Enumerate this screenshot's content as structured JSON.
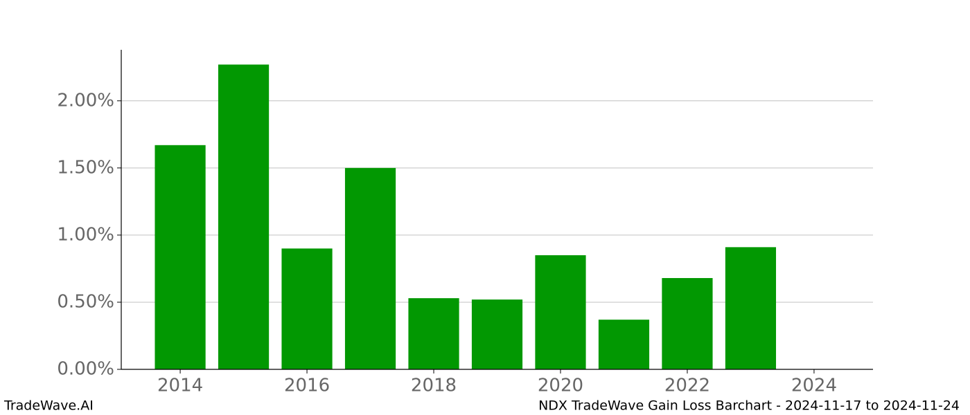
{
  "chart_data": {
    "type": "bar",
    "x": [
      2014,
      2015,
      2016,
      2017,
      2018,
      2019,
      2020,
      2021,
      2022,
      2023
    ],
    "values": [
      1.67,
      2.27,
      0.9,
      1.5,
      0.53,
      0.52,
      0.85,
      0.37,
      0.68,
      0.91
    ],
    "color": "#029802",
    "xlim": [
      2013.07,
      2024.93
    ],
    "xticks": [
      2014,
      2016,
      2018,
      2020,
      2022,
      2024
    ],
    "ylim": [
      0,
      2.38
    ],
    "yticks": [
      {
        "value": 0,
        "label": "0.00%"
      },
      {
        "value": 0.5,
        "label": "0.50%"
      },
      {
        "value": 1.0,
        "label": "1.00%"
      },
      {
        "value": 1.5,
        "label": "1.50%"
      },
      {
        "value": 2.0,
        "label": "2.00%"
      }
    ],
    "grid": true,
    "footer_left": "TradeWave.AI",
    "footer_right": "NDX TradeWave Gain Loss Barchart - 2024-11-17 to 2024-11-24"
  }
}
